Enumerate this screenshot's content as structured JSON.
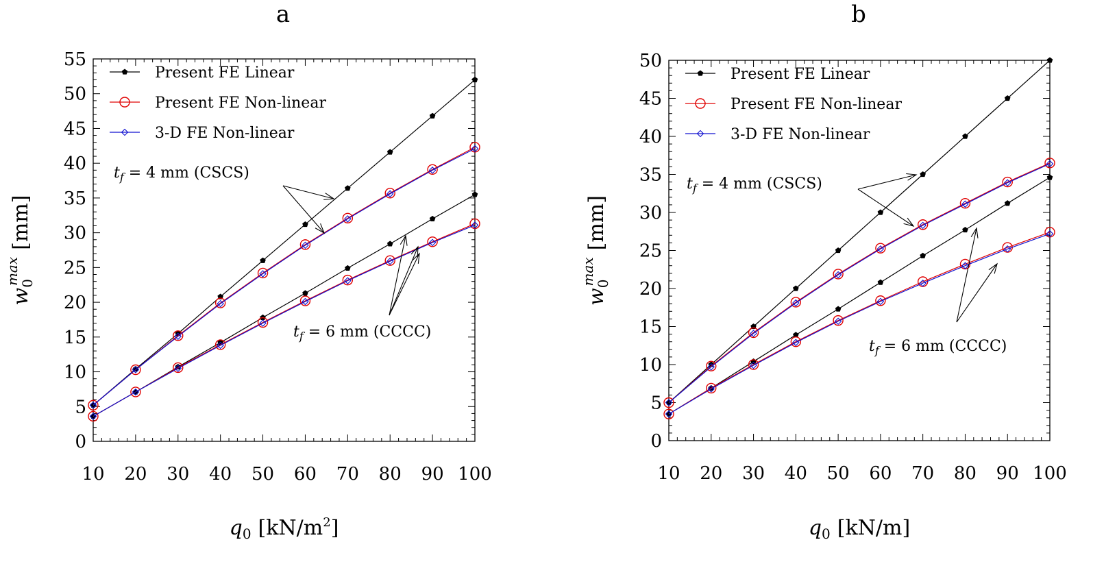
{
  "chart_data": [
    {
      "type": "line",
      "title": "a",
      "xlabel": "q0 [kN/m2]",
      "xlabel_main": "q",
      "xlabel_sub": "0",
      "xlabel_unit": "[kN/m",
      "xlabel_sup": "2",
      "xlabel_close": "]",
      "ylabel": "w0max [mm]",
      "ylabel_main": "w",
      "ylabel_sub": "0",
      "ylabel_sup": "max",
      "ylabel_unit": "[mm]",
      "xlim": [
        10,
        100
      ],
      "ylim": [
        0,
        55
      ],
      "xticks": [
        10,
        20,
        30,
        40,
        50,
        60,
        70,
        80,
        90,
        100
      ],
      "yticks": [
        0,
        5,
        10,
        15,
        20,
        25,
        30,
        35,
        40,
        45,
        50,
        55
      ],
      "x": [
        10,
        20,
        30,
        40,
        50,
        60,
        70,
        80,
        90,
        100
      ],
      "series": [
        {
          "name": "Present FE Linear",
          "group": "tf=4 mm (CSCS)",
          "style": "linear",
          "values": [
            5.2,
            10.4,
            15.5,
            20.8,
            26.0,
            31.2,
            36.4,
            41.6,
            46.8,
            52.0
          ]
        },
        {
          "name": "Present FE Non-linear",
          "group": "tf=4 mm (CSCS)",
          "style": "fe-nonlinear",
          "values": [
            5.2,
            10.3,
            15.2,
            19.9,
            24.2,
            28.3,
            32.1,
            35.7,
            39.1,
            42.3
          ]
        },
        {
          "name": "3-D FE Non-linear",
          "group": "tf=4 mm (CSCS)",
          "style": "3d-nonlinear",
          "values": [
            5.2,
            10.3,
            15.1,
            19.8,
            24.1,
            28.2,
            32.0,
            35.6,
            39.0,
            42.1
          ]
        },
        {
          "name": "Present FE Linear",
          "group": "tf=6 mm (CCCC)",
          "style": "linear",
          "values": [
            3.6,
            7.1,
            10.7,
            14.2,
            17.8,
            21.3,
            24.9,
            28.4,
            32.0,
            35.5
          ]
        },
        {
          "name": "Present FE Non-linear",
          "group": "tf=6 mm (CCCC)",
          "style": "fe-nonlinear",
          "values": [
            3.6,
            7.1,
            10.6,
            13.9,
            17.1,
            20.2,
            23.2,
            26.0,
            28.7,
            31.3
          ]
        },
        {
          "name": "3-D FE Non-linear",
          "group": "tf=6 mm (CCCC)",
          "style": "3d-nonlinear",
          "values": [
            3.6,
            7.1,
            10.5,
            13.8,
            17.0,
            20.1,
            23.1,
            25.9,
            28.6,
            31.1
          ]
        }
      ],
      "legend": [
        "Present FE Linear",
        "Present FE Non-linear",
        "3-D FE Non-linear"
      ],
      "annotations": [
        {
          "prefix": "t",
          "sub": "f",
          "text": " = 4 mm (CSCS)"
        },
        {
          "prefix": "t",
          "sub": "f",
          "text": " = 6 mm (CCCC)"
        }
      ]
    },
    {
      "type": "line",
      "title": "b",
      "xlabel": "q0 [kN/m]",
      "xlabel_main": "q",
      "xlabel_sub": "0",
      "xlabel_unit": "[kN/m]",
      "xlabel_sup": "",
      "xlabel_close": "",
      "ylabel": "w0max [mm]",
      "ylabel_main": "w",
      "ylabel_sub": "0",
      "ylabel_sup": "max",
      "ylabel_unit": "[mm]",
      "xlim": [
        10,
        100
      ],
      "ylim": [
        0,
        50
      ],
      "xticks": [
        10,
        20,
        30,
        40,
        50,
        60,
        70,
        80,
        90,
        100
      ],
      "yticks": [
        0,
        5,
        10,
        15,
        20,
        25,
        30,
        35,
        40,
        45,
        50
      ],
      "x": [
        10,
        20,
        30,
        40,
        50,
        60,
        70,
        80,
        90,
        100
      ],
      "series": [
        {
          "name": "Present FE Linear",
          "group": "tf=4 mm (CSCS)",
          "style": "linear",
          "values": [
            5.0,
            10.0,
            15.0,
            20.0,
            25.0,
            30.0,
            35.0,
            40.0,
            45.0,
            50.0
          ]
        },
        {
          "name": "Present FE Non-linear",
          "group": "tf=4 mm (CSCS)",
          "style": "fe-nonlinear",
          "values": [
            5.0,
            9.8,
            14.2,
            18.2,
            21.9,
            25.3,
            28.4,
            31.2,
            34.0,
            36.5
          ]
        },
        {
          "name": "3-D FE Non-linear",
          "group": "tf=4 mm (CSCS)",
          "style": "3d-nonlinear",
          "values": [
            5.0,
            9.7,
            14.1,
            18.1,
            21.8,
            25.2,
            28.3,
            31.1,
            33.9,
            36.4
          ]
        },
        {
          "name": "Present FE Linear",
          "group": "tf=6 mm (CCCC)",
          "style": "linear",
          "values": [
            3.5,
            6.9,
            10.4,
            13.9,
            17.3,
            20.8,
            24.3,
            27.7,
            31.2,
            34.6
          ]
        },
        {
          "name": "Present FE Non-linear",
          "group": "tf=6 mm (CCCC)",
          "style": "fe-nonlinear",
          "values": [
            3.5,
            6.9,
            10.0,
            13.0,
            15.8,
            18.4,
            20.9,
            23.2,
            25.4,
            27.4
          ]
        },
        {
          "name": "3-D FE Non-linear",
          "group": "tf=6 mm (CCCC)",
          "style": "3d-nonlinear",
          "values": [
            3.5,
            6.8,
            9.9,
            12.9,
            15.7,
            18.3,
            20.7,
            23.0,
            25.2,
            27.2
          ]
        }
      ],
      "legend": [
        "Present FE Linear",
        "Present FE Non-linear",
        "3-D FE Non-linear"
      ],
      "annotations": [
        {
          "prefix": "t",
          "sub": "f",
          "text": " = 4 mm (CSCS)"
        },
        {
          "prefix": "t",
          "sub": "f",
          "text": " = 6 mm (CCCC)"
        }
      ]
    }
  ]
}
